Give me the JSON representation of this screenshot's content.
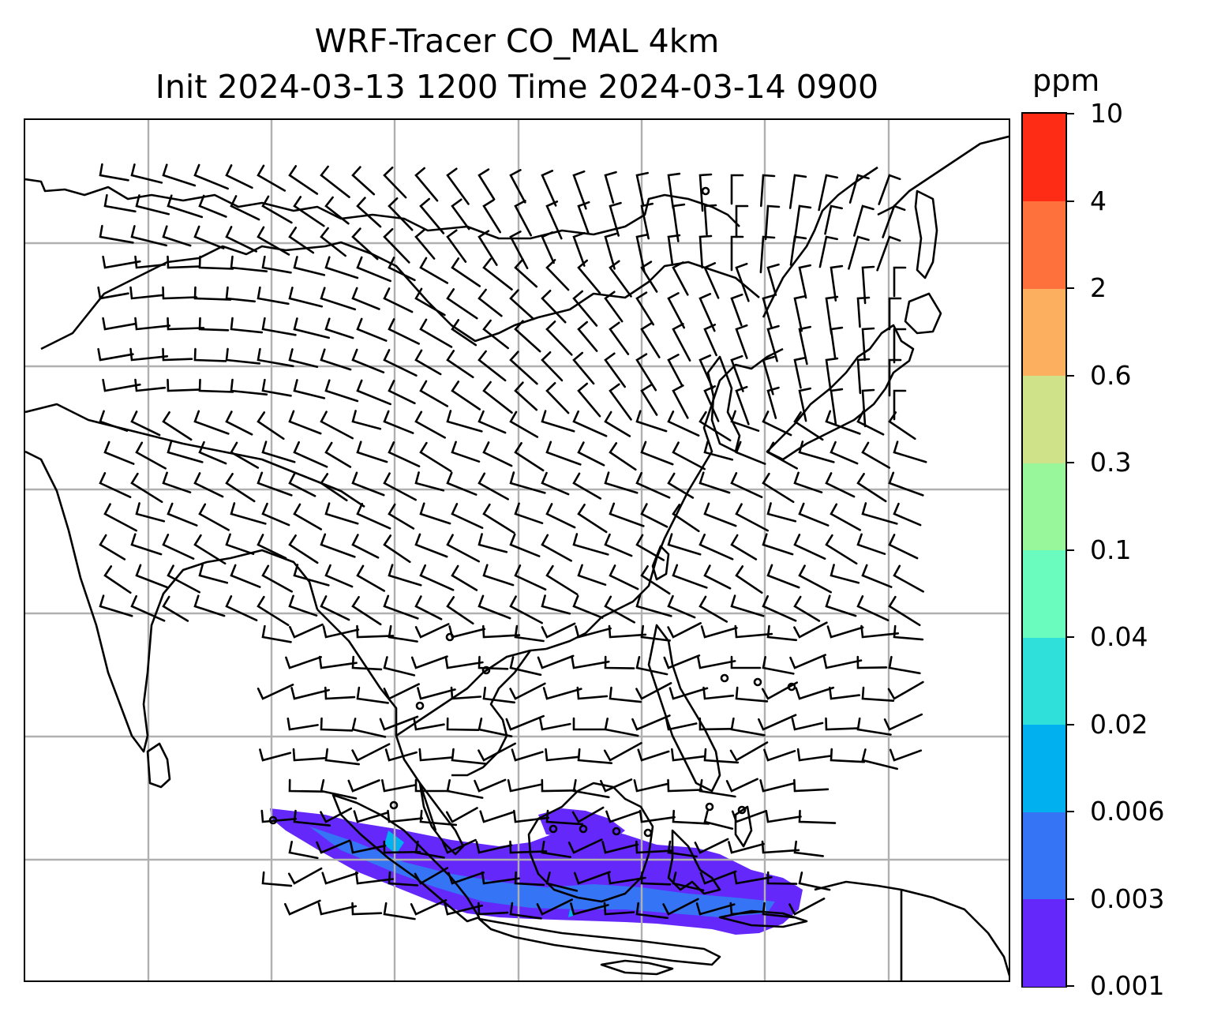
{
  "title": {
    "line1": "WRF-Tracer CO_MAL 4km",
    "line2": "Init 2024-03-13 1200 Time 2024-03-14 0900"
  },
  "colorbar": {
    "units": "ppm",
    "levels": [
      "0.001",
      "0.003",
      "0.006",
      "0.02",
      "0.04",
      "0.1",
      "0.3",
      "0.6",
      "2",
      "4",
      "10"
    ],
    "colors": [
      "#6428fa",
      "#3574f5",
      "#01b0ee",
      "#2fdfd9",
      "#6afbbe",
      "#98f79b",
      "#cfe289",
      "#fdaf60",
      "#fe713c",
      "#fe2c15"
    ]
  },
  "map": {
    "projection": "lat-lon",
    "gridlines": true,
    "field": "CO_MAL tracer concentration",
    "plume_region": "Sumatra-Java-Borneo band, southern part of domain",
    "plume_levels": [
      "0.001-0.003",
      "0.003-0.006",
      "0.006-0.02"
    ],
    "overlay": "wind barbs",
    "coastlines": true
  }
}
